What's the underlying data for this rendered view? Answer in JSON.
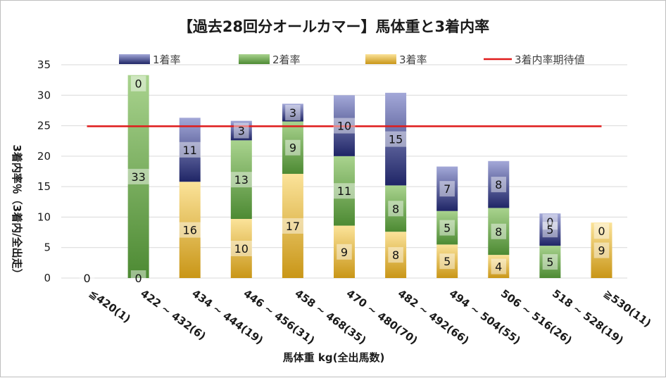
{
  "chart_data": {
    "type": "bar",
    "stacked": true,
    "title": "【過去28回分オールカマー】馬体重と3着内率",
    "xlabel": "馬体重 kg(全出馬数)",
    "ylabel": "3着内率％（3着内/全出走）",
    "ylim": [
      0,
      35
    ],
    "yticks": [
      0,
      5,
      10,
      15,
      20,
      25,
      30,
      35
    ],
    "ytick_labels": [
      "0",
      "5",
      "10",
      "15",
      "20",
      "25",
      "30",
      "35"
    ],
    "categories": [
      "≦420(1)",
      "422 ~ 432(6)",
      "434 ~ 444(19)",
      "446 ~ 456(31)",
      "458 ~ 468(35)",
      "470 ~ 480(70)",
      "482 ~ 492(66)",
      "494 ~ 504(55)",
      "506 ~ 516(26)",
      "518 ~ 528(19)",
      "≧530(11)"
    ],
    "series": [
      {
        "name": "3着率",
        "values": [
          0,
          0,
          15.8,
          9.7,
          17.1,
          8.6,
          7.6,
          5.5,
          3.8,
          0,
          9.1
        ],
        "labels": [
          "0",
          "0",
          "16",
          "10",
          "17",
          "9",
          "8",
          "5",
          "4",
          "0",
          "9"
        ]
      },
      {
        "name": "2着率",
        "values": [
          0,
          33.3,
          0,
          12.9,
          8.6,
          11.4,
          7.6,
          5.5,
          7.7,
          5.3,
          0
        ],
        "labels": [
          "",
          "33",
          "",
          "13",
          "9",
          "11",
          "8",
          "5",
          "8",
          "5",
          ""
        ]
      },
      {
        "name": "1着率",
        "values": [
          0,
          0,
          10.5,
          3.2,
          2.9,
          10.0,
          15.2,
          7.3,
          7.7,
          5.3,
          0
        ],
        "labels": [
          "",
          "0",
          "11",
          "3",
          "3",
          "10",
          "15",
          "7",
          "8",
          "5",
          "0"
        ]
      }
    ],
    "label_anchor": [
      "bottom",
      "bottom",
      "top",
      "top",
      "top",
      "top",
      "top",
      "top",
      "top",
      "top",
      "top"
    ],
    "expected_line": {
      "name": "3着内率期待値",
      "value": 24.9
    },
    "legend": [
      "1着率",
      "2着率",
      "3着率",
      "3着内率期待値"
    ],
    "legend_position": "top",
    "grid": true,
    "colors": {
      "first": [
        "#a3a8d8",
        "#1f2566"
      ],
      "second": [
        "#a9d38e",
        "#4d8a33"
      ],
      "third": [
        "#fbe39a",
        "#c99617"
      ],
      "expected": "#e01b1b",
      "grid": "#d9d9d9"
    }
  }
}
